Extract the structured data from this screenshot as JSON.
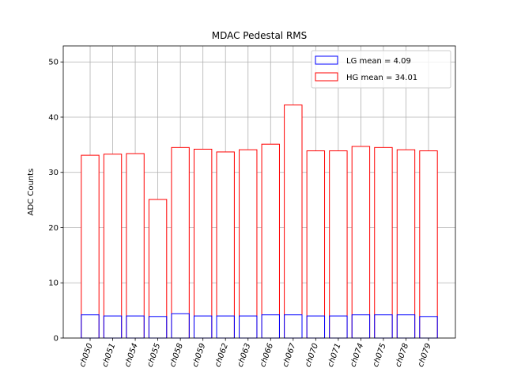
{
  "chart_data": {
    "type": "bar",
    "title": "MDAC Pedestal RMS",
    "xlabel": "",
    "ylabel": "ADC Counts",
    "ylim": [
      0,
      52.9
    ],
    "yticks": [
      0,
      10,
      20,
      30,
      40,
      50
    ],
    "grid": true,
    "legend_position": "top-right",
    "categories": [
      "ch050",
      "ch051",
      "ch054",
      "ch055",
      "ch058",
      "ch059",
      "ch062",
      "ch063",
      "ch066",
      "ch067",
      "ch070",
      "ch071",
      "ch074",
      "ch075",
      "ch078",
      "ch079"
    ],
    "series": [
      {
        "name": "LG mean = 4.09",
        "color": "#0000ff",
        "values": [
          4.2,
          4.0,
          4.0,
          3.9,
          4.4,
          4.0,
          4.0,
          4.0,
          4.2,
          4.2,
          4.0,
          4.0,
          4.2,
          4.2,
          4.2,
          3.9
        ]
      },
      {
        "name": "HG mean = 34.01",
        "color": "#ff0000",
        "values": [
          33.1,
          33.3,
          33.4,
          25.1,
          34.5,
          34.2,
          33.7,
          34.1,
          35.1,
          42.2,
          33.9,
          33.9,
          34.7,
          34.5,
          34.1,
          33.9
        ]
      }
    ]
  }
}
